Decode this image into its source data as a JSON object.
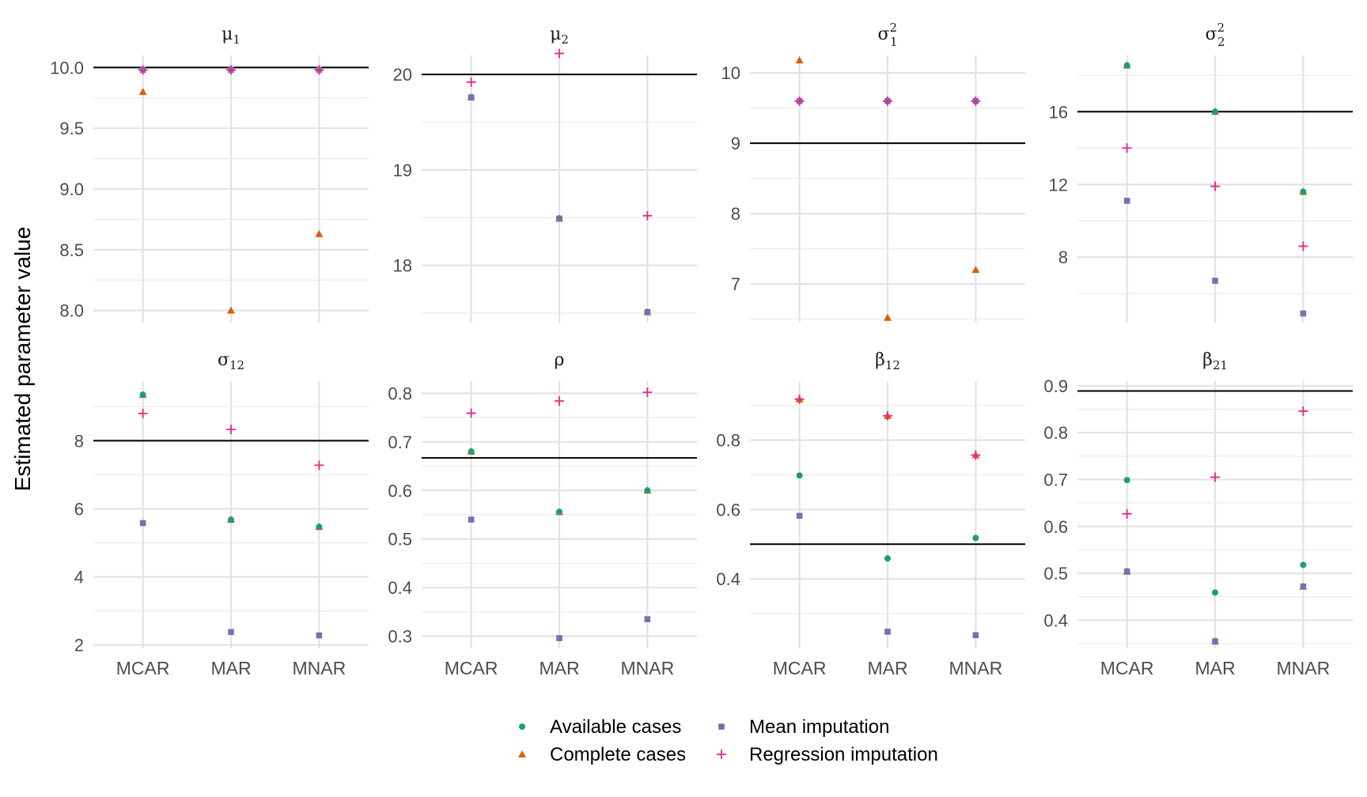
{
  "chart_data": {
    "type": "scatter",
    "layout": "facet-grid 2x4",
    "ylabel": "Estimated parameter value",
    "categories": [
      "MCAR",
      "MAR",
      "MNAR"
    ],
    "legend": {
      "placement": "bottom",
      "entries": [
        {
          "name": "Available cases",
          "shape": "circle",
          "color": "#1B9E77"
        },
        {
          "name": "Complete cases",
          "shape": "triangle",
          "color": "#D95F02"
        },
        {
          "name": "Mean imputation",
          "shape": "square",
          "color": "#7570B3"
        },
        {
          "name": "Regression imputation",
          "shape": "plus",
          "color": "#E7298A"
        }
      ]
    },
    "grid": true,
    "panels": [
      {
        "title": "μ",
        "sub": "1",
        "sup": "",
        "ylim": [
          7.9,
          10.1
        ],
        "ticks": [
          8.0,
          8.5,
          9.0,
          9.5,
          10.0
        ],
        "tick_format": "1dp",
        "true_value": 10.0,
        "series": [
          {
            "name": "Available cases",
            "values": [
              9.98,
              9.98,
              9.98
            ]
          },
          {
            "name": "Complete cases",
            "values": [
              9.8,
              8.0,
              8.63
            ]
          },
          {
            "name": "Mean imputation",
            "values": [
              9.98,
              9.98,
              9.98
            ]
          },
          {
            "name": "Regression imputation",
            "values": [
              9.98,
              9.98,
              9.98
            ]
          }
        ]
      },
      {
        "title": "μ",
        "sub": "2",
        "sup": "",
        "ylim": [
          17.4,
          20.2
        ],
        "ticks": [
          18,
          19,
          20
        ],
        "tick_format": "int",
        "true_value": 20,
        "series": [
          {
            "name": "Available cases",
            "values": [
              19.76,
              18.49,
              17.51
            ]
          },
          {
            "name": "Complete cases",
            "values": [
              19.76,
              18.49,
              17.51
            ]
          },
          {
            "name": "Mean imputation",
            "values": [
              19.76,
              18.49,
              17.51
            ]
          },
          {
            "name": "Regression imputation",
            "values": [
              19.92,
              20.22,
              18.52
            ]
          }
        ]
      },
      {
        "title": "σ",
        "sub": "1",
        "sup": "2",
        "ylim": [
          6.45,
          10.25
        ],
        "ticks": [
          7,
          8,
          9,
          10
        ],
        "tick_format": "int",
        "true_value": 9,
        "series": [
          {
            "name": "Available cases",
            "values": [
              9.6,
              9.6,
              9.6
            ]
          },
          {
            "name": "Complete cases",
            "values": [
              10.18,
              6.52,
              7.2
            ]
          },
          {
            "name": "Mean imputation",
            "values": [
              9.6,
              9.6,
              9.6
            ]
          },
          {
            "name": "Regression imputation",
            "values": [
              9.6,
              9.6,
              9.6
            ]
          }
        ]
      },
      {
        "title": "σ",
        "sub": "2",
        "sup": "2",
        "ylim": [
          4.4,
          19.1
        ],
        "ticks": [
          8,
          12,
          16
        ],
        "tick_format": "int",
        "true_value": 16,
        "series": [
          {
            "name": "Available cases",
            "values": [
              18.55,
              16.0,
              11.6
            ]
          },
          {
            "name": "Complete cases",
            "values": [
              18.55,
              16.0,
              11.6
            ]
          },
          {
            "name": "Mean imputation",
            "values": [
              11.1,
              6.7,
              4.9
            ]
          },
          {
            "name": "Regression imputation",
            "values": [
              14.0,
              11.9,
              8.6
            ]
          }
        ]
      },
      {
        "title": "σ",
        "sub": "12",
        "sup": "",
        "ylim": [
          1.9,
          9.75
        ],
        "ticks": [
          2,
          4,
          6,
          8
        ],
        "tick_format": "int",
        "true_value": 8,
        "series": [
          {
            "name": "Available cases",
            "values": [
              9.35,
              5.68,
              5.47
            ]
          },
          {
            "name": "Complete cases",
            "values": [
              9.35,
              5.68,
              5.47
            ]
          },
          {
            "name": "Mean imputation",
            "values": [
              5.58,
              2.38,
              2.28
            ]
          },
          {
            "name": "Regression imputation",
            "values": [
              8.8,
              8.33,
              7.28
            ]
          }
        ]
      },
      {
        "title": "ρ",
        "sub": "",
        "sup": "",
        "ylim": [
          0.275,
          0.825
        ],
        "ticks": [
          0.3,
          0.4,
          0.5,
          0.6,
          0.7,
          0.8
        ],
        "tick_format": "1dp",
        "true_value": 0.667,
        "series": [
          {
            "name": "Available cases",
            "values": [
              0.68,
              0.556,
              0.6
            ]
          },
          {
            "name": "Complete cases",
            "values": [
              0.68,
              0.556,
              0.6
            ]
          },
          {
            "name": "Mean imputation",
            "values": [
              0.54,
              0.296,
              0.335
            ]
          },
          {
            "name": "Regression imputation",
            "values": [
              0.759,
              0.784,
              0.802
            ]
          }
        ]
      },
      {
        "title": "β",
        "sub": "12",
        "sup": "",
        "ylim": [
          0.2,
          0.97
        ],
        "ticks": [
          0.4,
          0.6,
          0.8
        ],
        "tick_format": "1dp",
        "true_value": 0.5,
        "series": [
          {
            "name": "Available cases",
            "values": [
              0.698,
              0.459,
              0.518
            ]
          },
          {
            "name": "Complete cases",
            "values": [
              0.918,
              0.87,
              0.757
            ]
          },
          {
            "name": "Mean imputation",
            "values": [
              0.582,
              0.248,
              0.238
            ]
          },
          {
            "name": "Regression imputation",
            "values": [
              0.918,
              0.87,
              0.757
            ]
          }
        ]
      },
      {
        "title": "β",
        "sub": "21",
        "sup": "",
        "ylim": [
          0.34,
          0.91
        ],
        "ticks": [
          0.4,
          0.5,
          0.6,
          0.7,
          0.8,
          0.9
        ],
        "tick_format": "1dp",
        "true_value": 0.889,
        "series": [
          {
            "name": "Available cases",
            "values": [
              0.699,
              0.459,
              0.518
            ]
          },
          {
            "name": "Complete cases",
            "values": [
              0.504,
              0.355,
              0.472
            ]
          },
          {
            "name": "Mean imputation",
            "values": [
              0.504,
              0.355,
              0.472
            ]
          },
          {
            "name": "Regression imputation",
            "values": [
              0.627,
              0.705,
              0.846
            ]
          }
        ]
      }
    ]
  }
}
